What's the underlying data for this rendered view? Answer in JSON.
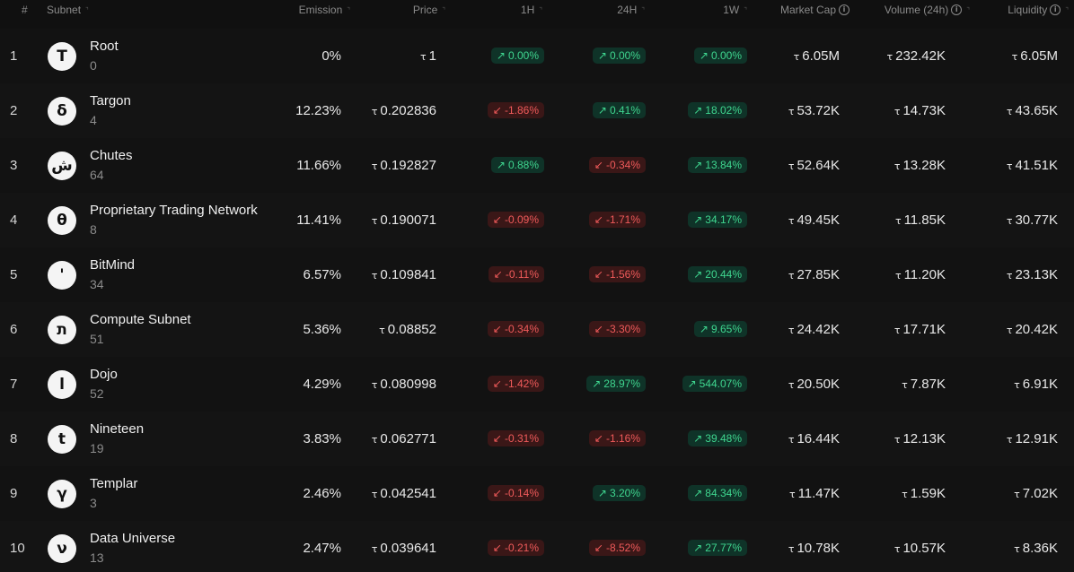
{
  "header": {
    "rank": "#",
    "subnet": "Subnet",
    "emission": "Emission",
    "price": "Price",
    "h1": "1H",
    "h24": "24H",
    "w1": "1W",
    "market_cap": "Market Cap",
    "volume": "Volume (24h)",
    "liquidity": "Liquidity"
  },
  "currency_symbol": "τ",
  "colors": {
    "up_text": "#3fd68f",
    "up_bg": "#0f3328",
    "down_text": "#ef5a5a",
    "down_bg": "#3a1717",
    "background": "#101010"
  },
  "rows": [
    {
      "rank": "1",
      "logo": "T",
      "name": "Root",
      "netuid": "0",
      "emission": "0%",
      "price": "1",
      "h1": {
        "dir": "up",
        "val": "0.00%"
      },
      "h24": {
        "dir": "up",
        "val": "0.00%"
      },
      "w1": {
        "dir": "up",
        "val": "0.00%"
      },
      "market_cap": "6.05M",
      "volume": "232.42K",
      "liquidity": "6.05M"
    },
    {
      "rank": "2",
      "logo": "δ",
      "name": "Targon",
      "netuid": "4",
      "emission": "12.23%",
      "price": "0.202836",
      "h1": {
        "dir": "down",
        "val": "-1.86%"
      },
      "h24": {
        "dir": "up",
        "val": "0.41%"
      },
      "w1": {
        "dir": "up",
        "val": "18.02%"
      },
      "market_cap": "53.72K",
      "volume": "14.73K",
      "liquidity": "43.65K"
    },
    {
      "rank": "3",
      "logo": "ش",
      "name": "Chutes",
      "netuid": "64",
      "emission": "11.66%",
      "price": "0.192827",
      "h1": {
        "dir": "up",
        "val": "0.88%"
      },
      "h24": {
        "dir": "down",
        "val": "-0.34%"
      },
      "w1": {
        "dir": "up",
        "val": "13.84%"
      },
      "market_cap": "52.64K",
      "volume": "13.28K",
      "liquidity": "41.51K"
    },
    {
      "rank": "4",
      "logo": "θ",
      "name": "Proprietary Trading Network",
      "netuid": "8",
      "emission": "11.41%",
      "price": "0.190071",
      "h1": {
        "dir": "down",
        "val": "-0.09%"
      },
      "h24": {
        "dir": "down",
        "val": "-1.71%"
      },
      "w1": {
        "dir": "up",
        "val": "34.17%"
      },
      "market_cap": "49.45K",
      "volume": "11.85K",
      "liquidity": "30.77K"
    },
    {
      "rank": "5",
      "logo": "'",
      "name": "BitMind",
      "netuid": "34",
      "emission": "6.57%",
      "price": "0.109841",
      "h1": {
        "dir": "down",
        "val": "-0.11%"
      },
      "h24": {
        "dir": "down",
        "val": "-1.56%"
      },
      "w1": {
        "dir": "up",
        "val": "20.44%"
      },
      "market_cap": "27.85K",
      "volume": "11.20K",
      "liquidity": "23.13K"
    },
    {
      "rank": "6",
      "logo": "ת",
      "name": "Compute Subnet",
      "netuid": "51",
      "emission": "5.36%",
      "price": "0.08852",
      "h1": {
        "dir": "down",
        "val": "-0.34%"
      },
      "h24": {
        "dir": "down",
        "val": "-3.30%"
      },
      "w1": {
        "dir": "up",
        "val": "9.65%"
      },
      "market_cap": "24.42K",
      "volume": "17.71K",
      "liquidity": "20.42K"
    },
    {
      "rank": "7",
      "logo": "ا",
      "name": "Dojo",
      "netuid": "52",
      "emission": "4.29%",
      "price": "0.080998",
      "h1": {
        "dir": "down",
        "val": "-1.42%"
      },
      "h24": {
        "dir": "up",
        "val": "28.97%"
      },
      "w1": {
        "dir": "up",
        "val": "544.07%"
      },
      "market_cap": "20.50K",
      "volume": "7.87K",
      "liquidity": "6.91K"
    },
    {
      "rank": "8",
      "logo": "t",
      "name": "Nineteen",
      "netuid": "19",
      "emission": "3.83%",
      "price": "0.062771",
      "h1": {
        "dir": "down",
        "val": "-0.31%"
      },
      "h24": {
        "dir": "down",
        "val": "-1.16%"
      },
      "w1": {
        "dir": "up",
        "val": "39.48%"
      },
      "market_cap": "16.44K",
      "volume": "12.13K",
      "liquidity": "12.91K"
    },
    {
      "rank": "9",
      "logo": "γ",
      "name": "Templar",
      "netuid": "3",
      "emission": "2.46%",
      "price": "0.042541",
      "h1": {
        "dir": "down",
        "val": "-0.14%"
      },
      "h24": {
        "dir": "up",
        "val": "3.20%"
      },
      "w1": {
        "dir": "up",
        "val": "84.34%"
      },
      "market_cap": "11.47K",
      "volume": "1.59K",
      "liquidity": "7.02K"
    },
    {
      "rank": "10",
      "logo": "ν",
      "name": "Data Universe",
      "netuid": "13",
      "emission": "2.47%",
      "price": "0.039641",
      "h1": {
        "dir": "down",
        "val": "-0.21%"
      },
      "h24": {
        "dir": "down",
        "val": "-8.52%"
      },
      "w1": {
        "dir": "up",
        "val": "27.77%"
      },
      "market_cap": "10.78K",
      "volume": "10.57K",
      "liquidity": "8.36K"
    }
  ]
}
